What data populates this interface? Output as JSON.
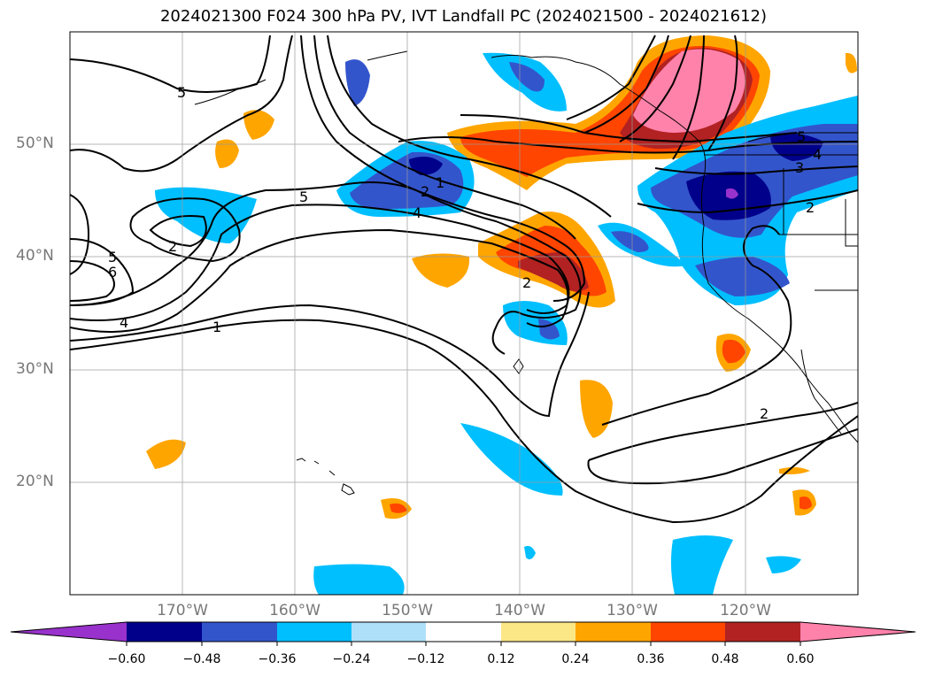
{
  "title": "2024021300 F024 300 hPa PV, IVT Landfall PC (2024021500 - 2024021612)",
  "map": {
    "projection": "PlateCarree",
    "lon_range": [
      -180,
      -110
    ],
    "lat_range": [
      10,
      60
    ],
    "lat_labels": [
      "50°N",
      "40°N",
      "30°N",
      "20°N"
    ],
    "lon_labels": [
      "170°W",
      "160°W",
      "150°W",
      "140°W",
      "130°W",
      "120°W"
    ],
    "contour_labels": [
      "5",
      "5",
      "1",
      "2",
      "4",
      "5",
      "4",
      "3",
      "2",
      "2",
      "5",
      "6",
      "4",
      "2",
      "1",
      "2"
    ]
  },
  "colorbar": {
    "ticks": [
      "−0.60",
      "−0.48",
      "−0.36",
      "−0.24",
      "−0.12",
      "0.12",
      "0.24",
      "0.36",
      "0.48",
      "0.60"
    ],
    "colors": [
      "#9932cc",
      "#00008b",
      "#3355cc",
      "#00bfff",
      "#aee0fa",
      "#ffffff",
      "#fce787",
      "#ffa500",
      "#ff4500",
      "#b22222",
      "#ff82ab"
    ]
  }
}
